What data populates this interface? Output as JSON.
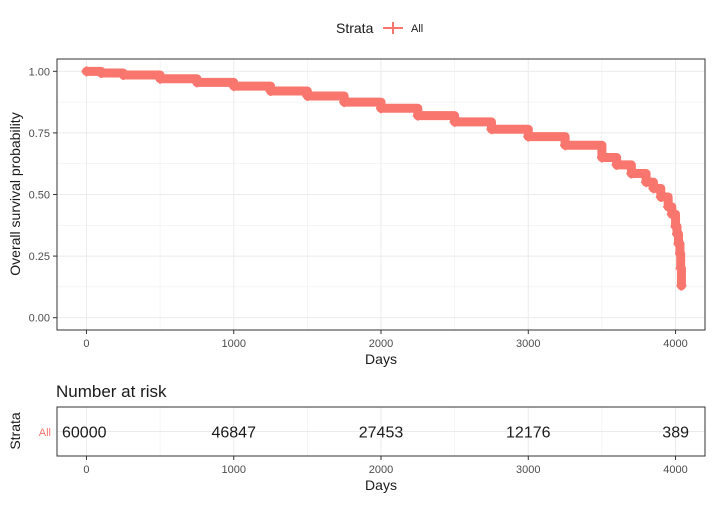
{
  "legend": {
    "title": "Strata",
    "entry": "All",
    "placement": "top"
  },
  "colors": {
    "curve": "#F8766D",
    "grid": "#EBEBEB",
    "frame": "#333333",
    "tick_text": "#4D4D4D",
    "text": "#1A1A1A"
  },
  "chart_data": [
    {
      "type": "line",
      "xlabel": "Days",
      "ylabel": "Overall survival probability",
      "xlim": [
        -200,
        4200
      ],
      "ylim": [
        -0.05,
        1.05
      ],
      "x_ticks": [
        0,
        1000,
        2000,
        3000,
        4000
      ],
      "x_tick_labels": [
        "0",
        "1000",
        "2000",
        "3000",
        "4000"
      ],
      "y_ticks": [
        0,
        0.25,
        0.5,
        0.75,
        1
      ],
      "y_tick_labels": [
        "0.00",
        "0.25",
        "0.50",
        "0.75",
        "1.00"
      ],
      "grid": true,
      "censor_marks": true,
      "series": [
        {
          "name": "All",
          "color": "#F8766D",
          "x": [
            0,
            100,
            250,
            500,
            750,
            1000,
            1250,
            1500,
            1750,
            2000,
            2250,
            2500,
            2750,
            3000,
            3250,
            3500,
            3600,
            3700,
            3800,
            3850,
            3900,
            3950,
            3975,
            4000,
            4010,
            4020,
            4030,
            4035,
            4040
          ],
          "y": [
            1.0,
            0.993,
            0.985,
            0.97,
            0.955,
            0.94,
            0.92,
            0.9,
            0.875,
            0.85,
            0.82,
            0.795,
            0.765,
            0.735,
            0.7,
            0.65,
            0.62,
            0.585,
            0.55,
            0.525,
            0.49,
            0.45,
            0.42,
            0.37,
            0.34,
            0.3,
            0.26,
            0.2,
            0.13
          ]
        }
      ]
    },
    {
      "type": "table",
      "title": "Number at risk",
      "ylabel": "Strata",
      "xlabel": "Days",
      "row_label": "All",
      "xlim": [
        -200,
        4200
      ],
      "x_ticks": [
        0,
        1000,
        2000,
        3000,
        4000
      ],
      "x_tick_labels": [
        "0",
        "1000",
        "2000",
        "3000",
        "4000"
      ],
      "grid": true,
      "values": [
        {
          "x": 0,
          "label": "60000"
        },
        {
          "x": 1000,
          "label": "46847"
        },
        {
          "x": 2000,
          "label": "27453"
        },
        {
          "x": 3000,
          "label": "12176"
        },
        {
          "x": 4000,
          "label": "389"
        }
      ]
    }
  ]
}
